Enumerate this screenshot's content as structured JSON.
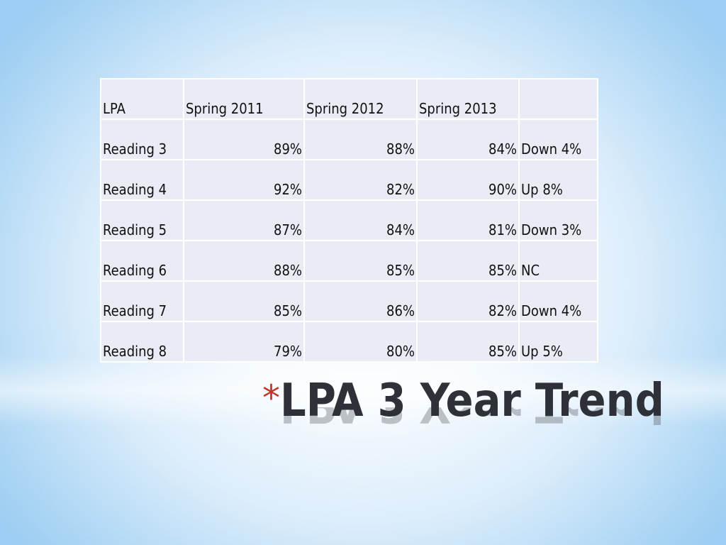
{
  "table": {
    "header": [
      "LPA",
      "Spring 2011",
      "Spring 2012",
      "Spring 2013",
      ""
    ],
    "rows": [
      [
        "Reading 3",
        "89%",
        "88%",
        "84%",
        "Down 4%"
      ],
      [
        "Reading 4",
        "92%",
        "82%",
        "90%",
        "Up 8%"
      ],
      [
        "Reading 5",
        "87%",
        "84%",
        "81%",
        "Down 3%"
      ],
      [
        "Reading 6",
        "88%",
        "85%",
        "85%",
        "NC"
      ],
      [
        "Reading 7",
        "85%",
        "86%",
        "82%",
        "Down 4%"
      ],
      [
        "Reading 8",
        "79%",
        "80%",
        "85%",
        "Up 5%"
      ]
    ]
  },
  "slide": {
    "bullet": "*",
    "title": "LPA 3 Year Trend",
    "accent_color": "#c0392b",
    "table_fill_color": "#e9ebf5"
  }
}
